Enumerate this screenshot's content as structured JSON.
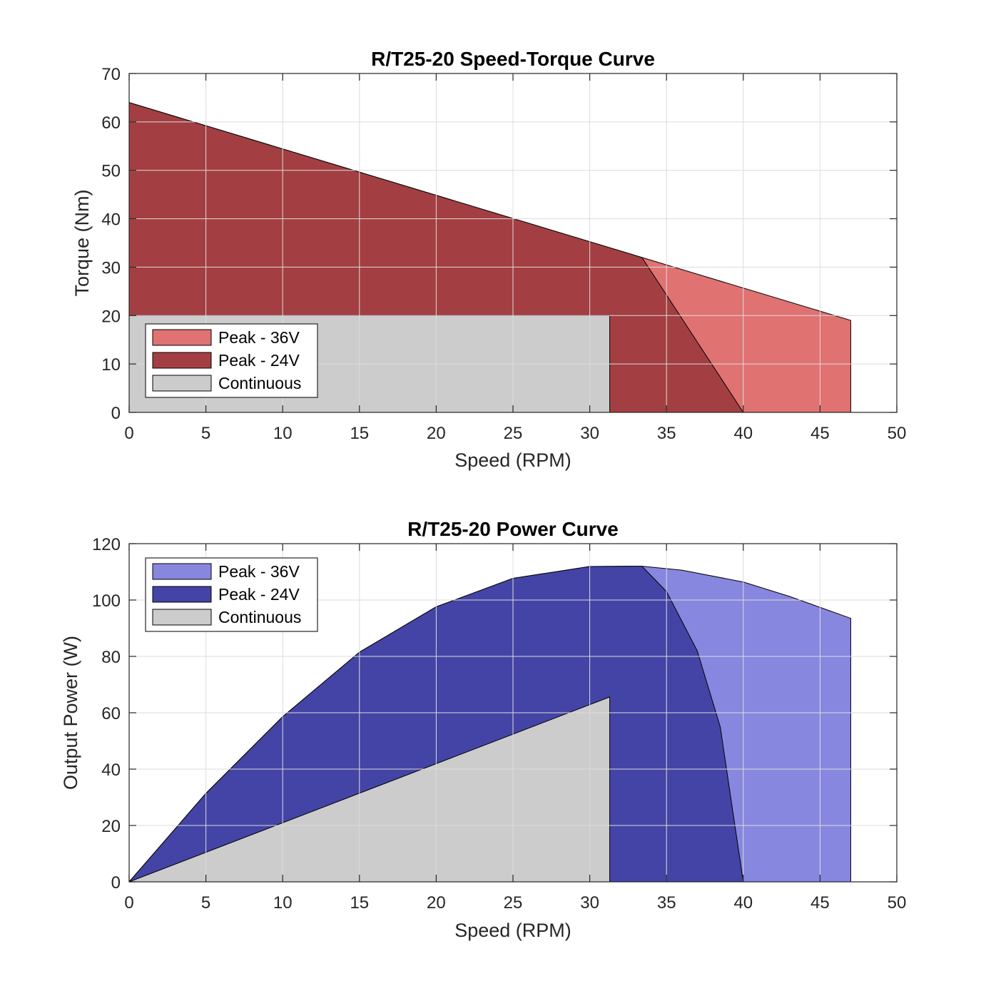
{
  "chart_data": [
    {
      "type": "area",
      "title": "R/T25-20 Speed-Torque Curve",
      "xlabel": "Speed (RPM)",
      "ylabel": "Torque (Nm)",
      "xlim": [
        0,
        50
      ],
      "ylim": [
        0,
        70
      ],
      "xticks": [
        "0",
        "5",
        "10",
        "15",
        "20",
        "25",
        "30",
        "35",
        "40",
        "45",
        "50"
      ],
      "yticks": [
        "0",
        "10",
        "20",
        "30",
        "40",
        "50",
        "60",
        "70"
      ],
      "grid": true,
      "legend_position": "bottom-left",
      "series": [
        {
          "name": "Peak - 36V",
          "color": "#e07272",
          "points": [
            [
              0,
              0
            ],
            [
              0,
              64
            ],
            [
              33.4,
              32
            ],
            [
              47,
              19
            ],
            [
              47,
              0
            ]
          ]
        },
        {
          "name": "Peak - 24V",
          "color": "#a33f42",
          "points": [
            [
              0,
              0
            ],
            [
              0,
              64
            ],
            [
              33.4,
              32
            ],
            [
              40,
              0
            ]
          ]
        },
        {
          "name": "Continuous",
          "color": "#cccccc",
          "points": [
            [
              0,
              0
            ],
            [
              0,
              20
            ],
            [
              31.3,
              20
            ],
            [
              31.3,
              0
            ]
          ]
        }
      ]
    },
    {
      "type": "area",
      "title": "R/T25-20 Power Curve",
      "xlabel": "Speed (RPM)",
      "ylabel": "Output Power (W)",
      "xlim": [
        0,
        50
      ],
      "ylim": [
        0,
        120
      ],
      "xticks": [
        "0",
        "5",
        "10",
        "15",
        "20",
        "25",
        "30",
        "35",
        "40",
        "45",
        "50"
      ],
      "yticks": [
        "0",
        "20",
        "40",
        "60",
        "80",
        "100",
        "120"
      ],
      "grid": true,
      "legend_position": "top-left",
      "series": [
        {
          "name": "Peak - 36V",
          "color": "#8787e0",
          "points": [
            [
              0,
              0
            ],
            [
              5,
              31.4
            ],
            [
              10,
              58.6
            ],
            [
              15,
              81.5
            ],
            [
              20,
              97.6
            ],
            [
              25,
              107.7
            ],
            [
              30,
              111.9
            ],
            [
              33.4,
              112
            ],
            [
              36,
              110.6
            ],
            [
              40,
              106.4
            ],
            [
              43,
              101.3
            ],
            [
              45,
              97.4
            ],
            [
              47,
              93.5
            ],
            [
              47,
              0
            ]
          ]
        },
        {
          "name": "Peak - 24V",
          "color": "#4444a6",
          "points": [
            [
              0,
              0
            ],
            [
              5,
              31.4
            ],
            [
              10,
              58.6
            ],
            [
              15,
              81.5
            ],
            [
              20,
              97.6
            ],
            [
              25,
              107.7
            ],
            [
              30,
              111.9
            ],
            [
              33.4,
              112
            ],
            [
              35,
              103
            ],
            [
              37,
              82
            ],
            [
              38.5,
              55
            ],
            [
              40,
              0
            ]
          ]
        },
        {
          "name": "Continuous",
          "color": "#cccccc",
          "points": [
            [
              0,
              0
            ],
            [
              31.3,
              65.6
            ],
            [
              31.3,
              0
            ]
          ]
        }
      ]
    }
  ]
}
